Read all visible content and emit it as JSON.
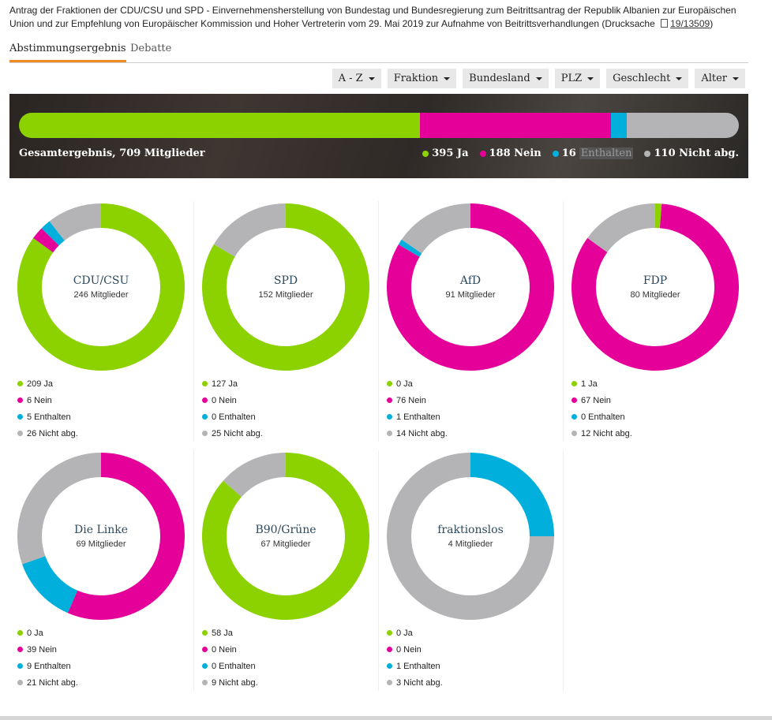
{
  "description": {
    "text": "Antrag der Fraktionen der CDU/CSU und SPD - Einvernehmensherstellung von Bundestag und Bundesregierung zum Beitrittsantrag der Republik Albanien zur Europäischen Union und zur Empfehlung von Europäischer Kommission und Hoher Vertreterin vom 29. Mai 2019 zur Aufnahme von Beitrittsverhandlungen (Drucksache",
    "link": "19/13509",
    "closing": ")"
  },
  "tabs": [
    {
      "label": "Abstimmungsergebnis"
    },
    {
      "label": "Debatte"
    }
  ],
  "filters": [
    "A - Z",
    "Fraktion",
    "Bundesland",
    "PLZ",
    "Geschlecht",
    "Alter"
  ],
  "colors": {
    "ja": "#8cd100",
    "nein": "#e6009a",
    "enthalten": "#00afdc",
    "nicht": "#b4b4b6"
  },
  "summary": {
    "total_label": "Gesamtergebnis, 709 Mitglieder",
    "ja": 395,
    "nein": 188,
    "enthalten": 16,
    "nicht": 110,
    "ja_label": "395 Ja",
    "nein_label": "188 Nein",
    "enthalten_count": "16",
    "enthalten_word": "Enthalten",
    "nicht_label": "110 Nicht abg."
  },
  "chart_data": [
    {
      "type": "pie",
      "title": "CDU/CSU",
      "subtitle": "246 Mitglieder",
      "categories": [
        "Ja",
        "Nein",
        "Enthalten",
        "Nicht abg."
      ],
      "values": [
        209,
        6,
        5,
        26
      ],
      "labels": [
        "209 Ja",
        "6 Nein",
        "5 Enthalten",
        "26 Nicht abg."
      ]
    },
    {
      "type": "pie",
      "title": "SPD",
      "subtitle": "152 Mitglieder",
      "categories": [
        "Ja",
        "Nein",
        "Enthalten",
        "Nicht abg."
      ],
      "values": [
        127,
        0,
        0,
        25
      ],
      "labels": [
        "127 Ja",
        "0 Nein",
        "0 Enthalten",
        "25 Nicht abg."
      ]
    },
    {
      "type": "pie",
      "title": "AfD",
      "subtitle": "91 Mitglieder",
      "categories": [
        "Ja",
        "Nein",
        "Enthalten",
        "Nicht abg."
      ],
      "values": [
        0,
        76,
        1,
        14
      ],
      "labels": [
        "0 Ja",
        "76 Nein",
        "1 Enthalten",
        "14 Nicht abg."
      ]
    },
    {
      "type": "pie",
      "title": "FDP",
      "subtitle": "80 Mitglieder",
      "categories": [
        "Ja",
        "Nein",
        "Enthalten",
        "Nicht abg."
      ],
      "values": [
        1,
        67,
        0,
        12
      ],
      "labels": [
        "1 Ja",
        "67 Nein",
        "0 Enthalten",
        "12 Nicht abg."
      ]
    },
    {
      "type": "pie",
      "title": "Die Linke",
      "subtitle": "69 Mitglieder",
      "categories": [
        "Ja",
        "Nein",
        "Enthalten",
        "Nicht abg."
      ],
      "values": [
        0,
        39,
        9,
        21
      ],
      "labels": [
        "0 Ja",
        "39 Nein",
        "9 Enthalten",
        "21 Nicht abg."
      ]
    },
    {
      "type": "pie",
      "title": "B90/Grüne",
      "subtitle": "67 Mitglieder",
      "categories": [
        "Ja",
        "Nein",
        "Enthalten",
        "Nicht abg."
      ],
      "values": [
        58,
        0,
        0,
        9
      ],
      "labels": [
        "58 Ja",
        "0 Nein",
        "0 Enthalten",
        "9 Nicht abg."
      ]
    },
    {
      "type": "pie",
      "title": "fraktionslos",
      "subtitle": "4 Mitglieder",
      "categories": [
        "Ja",
        "Nein",
        "Enthalten",
        "Nicht abg."
      ],
      "values": [
        0,
        0,
        1,
        3
      ],
      "labels": [
        "0 Ja",
        "0 Nein",
        "1 Enthalten",
        "3 Nicht abg."
      ]
    }
  ]
}
